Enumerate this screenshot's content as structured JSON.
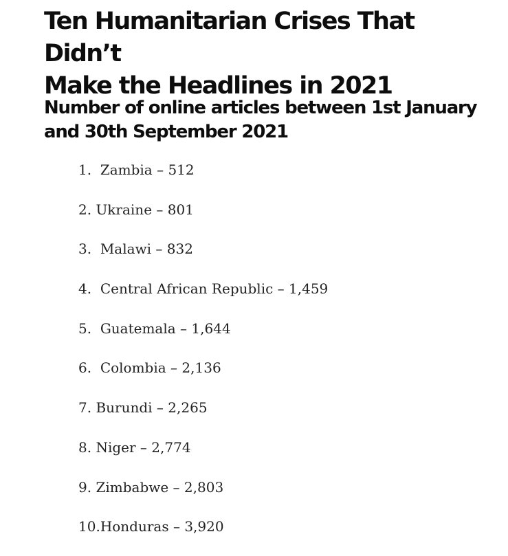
{
  "article": {
    "title_line1": "Ten Humanitarian Crises That Didn’t",
    "title_line2": "Make the Headlines in 2021",
    "subtitle_line1": "Number of online articles between 1st January",
    "subtitle_line2": "and 30th September 2021"
  },
  "crises": [
    {
      "number": "1.",
      "spacer": "  ",
      "country": "Zambia",
      "dash": " – ",
      "articles": "512"
    },
    {
      "number": "2.",
      "spacer": " ",
      "country": "Ukraine",
      "dash": " – ",
      "articles": "801"
    },
    {
      "number": "3.",
      "spacer": "  ",
      "country": "Malawi",
      "dash": " – ",
      "articles": "832"
    },
    {
      "number": "4.",
      "spacer": "  ",
      "country": "Central African Republic",
      "dash": " – ",
      "articles": "1,459"
    },
    {
      "number": "5.",
      "spacer": "  ",
      "country": "Guatemala",
      "dash": " – ",
      "articles": "1,644"
    },
    {
      "number": "6.",
      "spacer": "  ",
      "country": "Colombia",
      "dash": " – ",
      "articles": "2,136"
    },
    {
      "number": "7.",
      "spacer": " ",
      "country": "Burundi",
      "dash": " – ",
      "articles": "2,265"
    },
    {
      "number": "8.",
      "spacer": " ",
      "country": "Niger",
      "dash": " – ",
      "articles": "2,774"
    },
    {
      "number": "9.",
      "spacer": " ",
      "country": "Zimbabwe",
      "dash": " – ",
      "articles": "2,803"
    },
    {
      "number": "10.",
      "spacer": "",
      "country": "Honduras",
      "dash": " – ",
      "articles": "3,920"
    }
  ]
}
